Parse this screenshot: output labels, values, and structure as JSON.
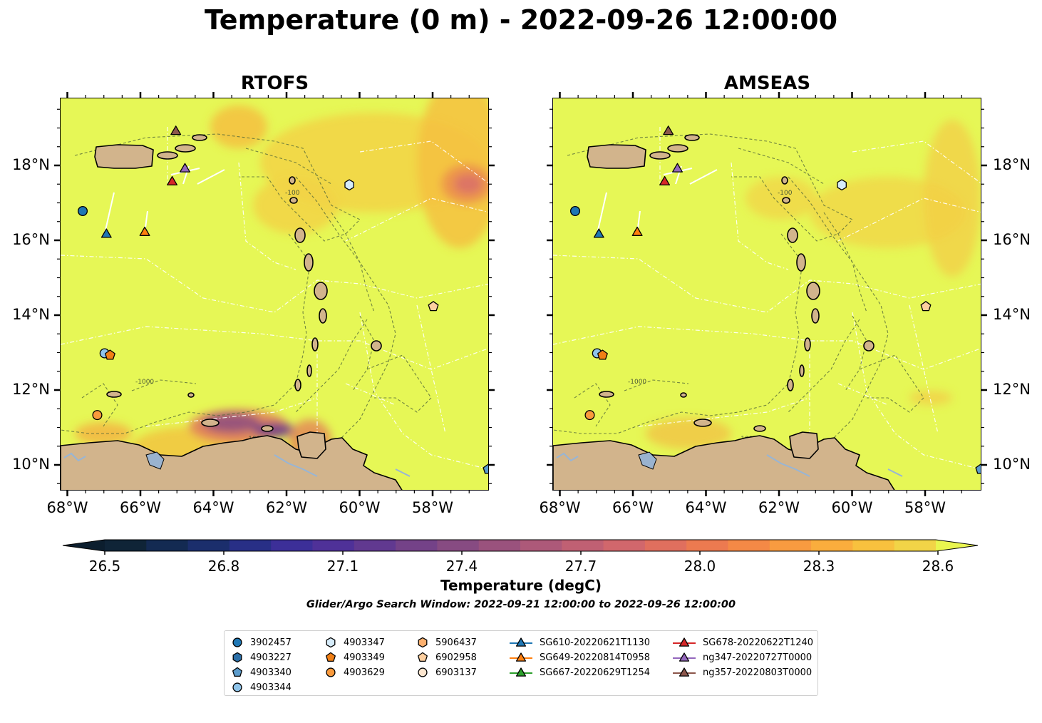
{
  "title": "Temperature (0 m) - 2022-09-26 12:00:00",
  "maps": [
    {
      "id": "rtofs",
      "title": "RTOFS"
    },
    {
      "id": "amseas",
      "title": "AMSEAS"
    }
  ],
  "lon_ticks": [
    "68°W",
    "66°W",
    "64°W",
    "62°W",
    "60°W",
    "58°W"
  ],
  "lat_ticks": [
    "18°N",
    "16°N",
    "14°N",
    "12°N",
    "10°N"
  ],
  "colorbar": {
    "label": "Temperature (degC)",
    "tick_labels": [
      "26.5",
      "26.8",
      "27.1",
      "27.4",
      "27.7",
      "28.0",
      "28.3",
      "28.6"
    ],
    "colors": [
      "#0f2437",
      "#132a52",
      "#1b2e6c",
      "#282f86",
      "#3c2f98",
      "#4f3198",
      "#613990",
      "#744288",
      "#874b82",
      "#9a527d",
      "#ad5979",
      "#c06073",
      "#d1676c",
      "#e06f5e",
      "#ec7a50",
      "#f48946",
      "#f89b40",
      "#faad3d",
      "#f8c13e",
      "#f2d447"
    ],
    "extend_low_color": "#0c1e2e",
    "extend_high_color": "#e9f54f"
  },
  "contour_labels": [
    "-1000",
    "-100"
  ],
  "search_window": "Glider/Argo Search Window: 2022-09-21 12:00:00 to 2022-09-26 12:00:00",
  "legend": [
    {
      "label": "3902457",
      "marker": "circle",
      "color": "#1f77b4",
      "line": false
    },
    {
      "label": "4903227",
      "marker": "hexagon",
      "color": "#2b6fa8",
      "line": false
    },
    {
      "label": "4903340",
      "marker": "pentagon",
      "color": "#5c9ccc",
      "line": false
    },
    {
      "label": "4903344",
      "marker": "circle",
      "color": "#8fc4ea",
      "line": false
    },
    {
      "label": "4903347",
      "marker": "hexagon",
      "color": "#d6ecfa",
      "line": false
    },
    {
      "label": "4903349",
      "marker": "pentagon",
      "color": "#f07f15",
      "line": false
    },
    {
      "label": "4903629",
      "marker": "circle",
      "color": "#fa9a3c",
      "line": false
    },
    {
      "label": "5906437",
      "marker": "hexagon",
      "color": "#fdb06e",
      "line": false
    },
    {
      "label": "6902958",
      "marker": "pentagon",
      "color": "#fdcf9f",
      "line": false
    },
    {
      "label": "6903137",
      "marker": "circle",
      "color": "#fde6cf",
      "line": false
    },
    {
      "label": "SG610-20220621T1130",
      "marker": "triangle",
      "color": "#1f77b4",
      "line": true
    },
    {
      "label": "SG649-20220814T0958",
      "marker": "triangle",
      "color": "#ff7f0e",
      "line": true
    },
    {
      "label": "SG667-20220629T1254",
      "marker": "triangle",
      "color": "#2ca02c",
      "line": true
    },
    {
      "label": "SG678-20220622T1240",
      "marker": "triangle",
      "color": "#d62728",
      "line": true
    },
    {
      "label": "ng347-20220727T0000",
      "marker": "triangle",
      "color": "#9467bd",
      "line": true
    },
    {
      "label": "ng357-20220803T0000",
      "marker": "triangle",
      "color": "#8c564b",
      "line": true
    }
  ],
  "observations": [
    {
      "label": "3902457",
      "lon": -67.6,
      "lat": 16.8
    },
    {
      "label": "4903340",
      "lon": -56.5,
      "lat": 9.9
    },
    {
      "label": "4903344",
      "lon": -67.0,
      "lat": 13.0
    },
    {
      "label": "4903347",
      "lon": -60.3,
      "lat": 17.5
    },
    {
      "label": "4903349",
      "lon": -66.85,
      "lat": 12.95
    },
    {
      "label": "4903629",
      "lon": -67.2,
      "lat": 11.35
    },
    {
      "label": "6902958",
      "lon": -58.0,
      "lat": 14.25
    },
    {
      "label": "SG610-20220621T1130",
      "lon": -66.95,
      "lat": 16.2
    },
    {
      "label": "SG649-20220814T0958",
      "lon": -65.9,
      "lat": 16.25
    },
    {
      "label": "SG678-20220622T1240",
      "lon": -65.15,
      "lat": 17.6
    },
    {
      "label": "ng347-20220727T0000",
      "lon": -64.8,
      "lat": 17.95
    },
    {
      "label": "ng357-20220803T0000",
      "lon": -65.05,
      "lat": 18.95
    }
  ]
}
